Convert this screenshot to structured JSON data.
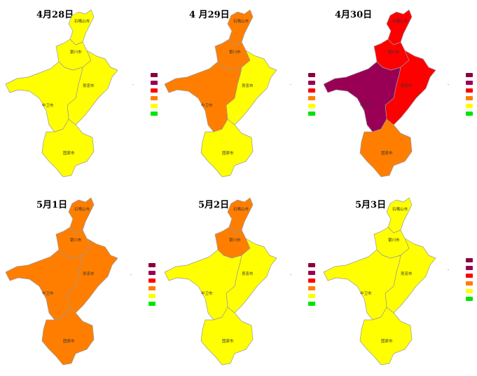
{
  "colors": {
    "maroon": "#8b0040",
    "purple": "#990055",
    "red": "#ff0000",
    "orange": "#ff7e00",
    "yellow": "#ffff00",
    "green": "#00e400"
  },
  "legend_levels": [
    "maroon",
    "purple",
    "red",
    "orange",
    "yellow",
    "green"
  ],
  "city_labels": [
    "石嘴山市",
    "银川市",
    "吴忠市",
    "中卫市",
    "固原市"
  ],
  "panels": [
    {
      "date": "4月28日",
      "colors": {
        "shizuishan": "yellow",
        "yinchuan": "yellow",
        "wuzhong": "yellow",
        "zhongwei": "yellow",
        "guyuan": "yellow"
      }
    },
    {
      "date": "4 月29日",
      "colors": {
        "shizuishan": "orange",
        "yinchuan": "orange",
        "wuzhong": "yellow",
        "zhongwei": "orange",
        "guyuan": "yellow"
      }
    },
    {
      "date": "4月30日",
      "colors": {
        "shizuishan": "red",
        "yinchuan": "red",
        "wuzhong": "red",
        "zhongwei": "purple",
        "guyuan": "orange"
      }
    },
    {
      "date": "5月1日",
      "colors": {
        "shizuishan": "orange",
        "yinchuan": "orange",
        "wuzhong": "orange",
        "zhongwei": "orange",
        "guyuan": "orange"
      }
    },
    {
      "date": "5月2日",
      "colors": {
        "shizuishan": "orange",
        "yinchuan": "orange",
        "wuzhong": "yellow",
        "zhongwei": "yellow",
        "guyuan": "yellow"
      }
    },
    {
      "date": "5月3日",
      "colors": {
        "shizuishan": "yellow",
        "yinchuan": "yellow",
        "wuzhong": "yellow",
        "zhongwei": "yellow",
        "guyuan": "yellow"
      }
    }
  ]
}
